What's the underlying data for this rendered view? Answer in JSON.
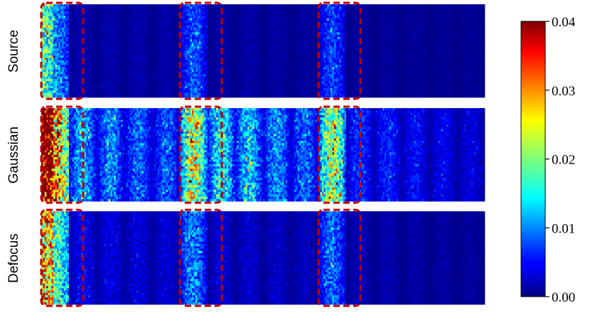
{
  "chart_data": {
    "type": "heatmap",
    "rows": [
      "Source",
      "Gaussian",
      "Defocus"
    ],
    "colorbar": {
      "min": 0.0,
      "max": 0.04,
      "ticks": [
        "0.00",
        "0.01",
        "0.02",
        "0.03",
        "0.04"
      ],
      "colormap": "jet"
    },
    "highlighted_regions": "channel groups 1, 6 and 11 (of 16) outlined with red dashed boxes in every row",
    "group_means": {
      "Source": [
        0.011,
        0.0012,
        0.0011,
        0.0011,
        0.001,
        0.0056,
        0.001,
        0.001,
        0.0009,
        0.0008,
        0.005,
        0.0008,
        0.0007,
        0.0007,
        0.0006,
        0.0006
      ],
      "Gaussian": [
        0.03,
        0.008,
        0.007,
        0.006,
        0.0055,
        0.016,
        0.01,
        0.009,
        0.007,
        0.006,
        0.015,
        0.0045,
        0.004,
        0.0035,
        0.003,
        0.0025
      ],
      "Defocus": [
        0.018,
        0.003,
        0.0026,
        0.0024,
        0.0022,
        0.007,
        0.0022,
        0.002,
        0.0018,
        0.0016,
        0.0062,
        0.0014,
        0.0012,
        0.001,
        0.0009,
        0.0008
      ]
    }
  },
  "colors": {
    "highlight_box": "#c00000"
  }
}
